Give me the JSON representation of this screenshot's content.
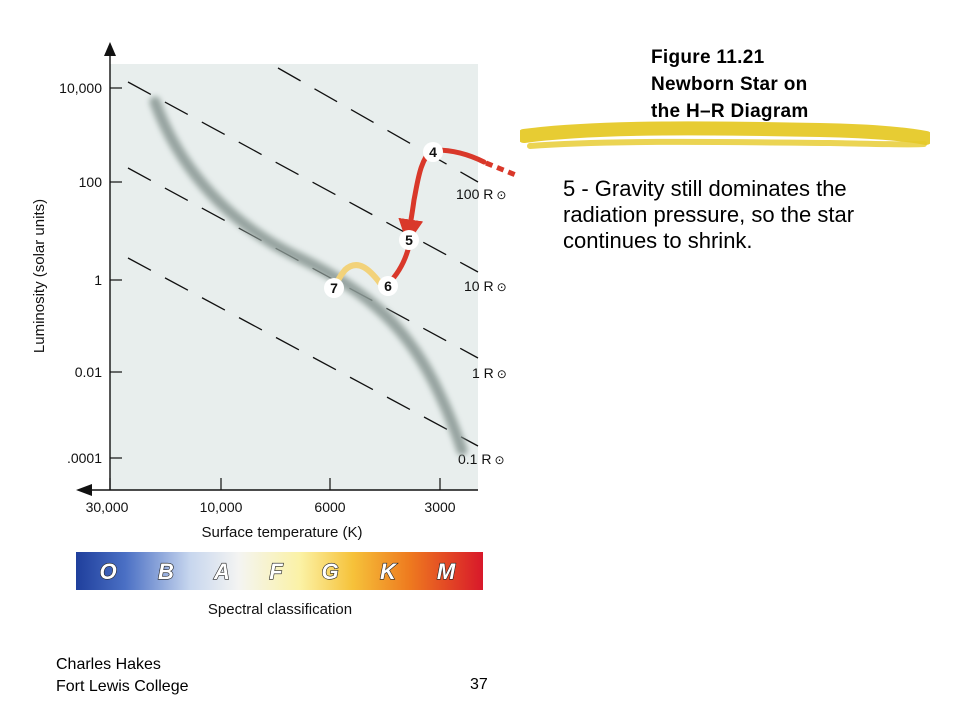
{
  "figure": {
    "title_lines": [
      "Figure 11.21",
      "Newborn Star on",
      "the H–R Diagram"
    ]
  },
  "caption": "5 - Gravity still dominates the radiation pressure, so the star continues to shrink.",
  "footer": {
    "author_line1": "Charles Hakes",
    "author_line2": "Fort Lewis College",
    "page_number": "37"
  },
  "diagram": {
    "ylabel": "Luminosity (solar units)",
    "xlabel": "Surface temperature (K)",
    "y_ticks": [
      "10,000",
      "100",
      "1",
      "0.01",
      ".0001"
    ],
    "x_ticks": [
      "30,000",
      "10,000",
      "6000",
      "3000"
    ],
    "radius_lines": [
      {
        "value": "100 R",
        "symbol": "⊙"
      },
      {
        "value": "10 R",
        "symbol": "⊙"
      },
      {
        "value": "1 R",
        "symbol": "⊙"
      },
      {
        "value": "0.1 R",
        "symbol": "⊙"
      }
    ],
    "stages": [
      "4",
      "5",
      "6",
      "7"
    ],
    "spectral_classes": [
      "O",
      "B",
      "A",
      "F",
      "G",
      "K",
      "M"
    ],
    "spectral_label": "Spectral classification",
    "colors": {
      "plot_background": "#e8eeed",
      "main_sequence": "#8e9c98",
      "track_red": "#d9382a",
      "track_yellow": "#f2d27a",
      "highlight_brush": "#e6c928"
    }
  }
}
